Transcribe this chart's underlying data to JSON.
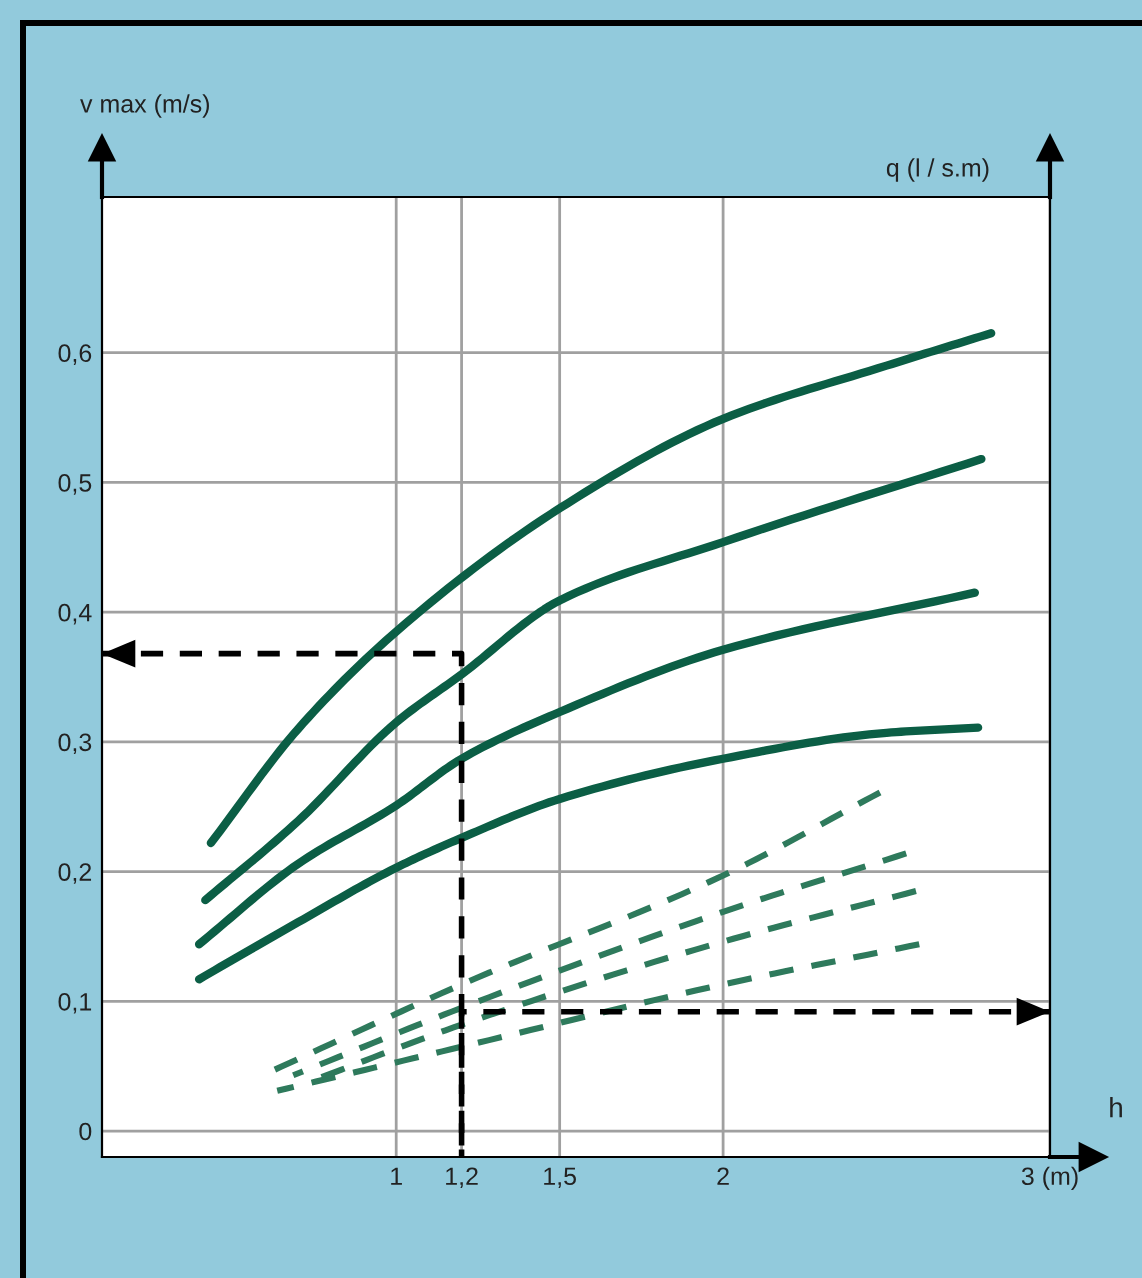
{
  "chart_data": {
    "type": "line",
    "xlabel": "h",
    "ylabel": "v max (m/s)",
    "y2label": "q (l / s.m)",
    "xlim": [
      0.1,
      3
    ],
    "ylim": [
      -0.02,
      0.72
    ],
    "xticks": [
      1,
      {
        "value": 1.2,
        "label": "1,2"
      },
      {
        "value": 1.5,
        "label": "1,5"
      },
      2,
      {
        "value": 3,
        "label": "3 (m)"
      }
    ],
    "yticks": [
      0,
      {
        "value": 0.1,
        "label": "0,1"
      },
      {
        "value": 0.2,
        "label": "0,2"
      },
      {
        "value": 0.3,
        "label": "0,3"
      },
      {
        "value": 0.4,
        "label": "0,4"
      },
      {
        "value": 0.5,
        "label": "0,5"
      },
      {
        "value": 0.6,
        "label": "0,6"
      }
    ],
    "grid": true,
    "series": [
      {
        "color": "#0b5e45",
        "line_style": "solid",
        "x": [
          0.433,
          0.7,
          1,
          1.5,
          2,
          2.5,
          2.82
        ],
        "values": [
          0.222,
          0.31,
          0.385,
          0.48,
          0.549,
          0.59,
          0.615
        ]
      },
      {
        "color": "#0b5e45",
        "line_style": "solid",
        "x": [
          0.416,
          0.7,
          1,
          1.2,
          1.5,
          2,
          2.79
        ],
        "values": [
          0.178,
          0.239,
          0.315,
          0.352,
          0.409,
          0.454,
          0.518
        ]
      },
      {
        "color": "#0b5e45",
        "line_style": "solid",
        "x": [
          0.397,
          0.7,
          1,
          1.2,
          1.5,
          2,
          2.77
        ],
        "values": [
          0.144,
          0.206,
          0.251,
          0.287,
          0.323,
          0.371,
          0.415
        ]
      },
      {
        "color": "#0b5e45",
        "line_style": "solid",
        "x": [
          0.397,
          0.7,
          1,
          1.2,
          1.5,
          2,
          2.5,
          2.78
        ],
        "values": [
          0.117,
          0.161,
          0.203,
          0.226,
          0.256,
          0.287,
          0.307,
          0.311
        ]
      },
      {
        "color": "#2e7a5c",
        "line_style": "dashed",
        "x": [
          0.617,
          1.2,
          2,
          2.48
        ],
        "values": [
          0.046,
          0.113,
          0.197,
          0.261
        ]
      },
      {
        "color": "#2e7a5c",
        "line_style": "dashed",
        "x": [
          0.685,
          1.2,
          2,
          2.56
        ],
        "values": [
          0.043,
          0.095,
          0.169,
          0.214
        ]
      },
      {
        "color": "#2e7a5c",
        "line_style": "dashed",
        "x": [
          0.735,
          1.2,
          2,
          2.59
        ],
        "values": [
          0.038,
          0.082,
          0.146,
          0.185
        ]
      },
      {
        "color": "#2e7a5c",
        "line_style": "dashed",
        "x": [
          0.636,
          1.2,
          2,
          2.6
        ],
        "values": [
          0.031,
          0.065,
          0.113,
          0.144
        ]
      },
      {
        "color": "#000000",
        "line_style": "dashed",
        "x": [
          1.2,
          1.2,
          0.1
        ],
        "values": [
          -0.02,
          0.368,
          0.368
        ]
      },
      {
        "color": "#000000",
        "line_style": "dashed",
        "x": [
          1.2,
          1.2,
          3
        ],
        "values": [
          -0.02,
          0.092,
          0.092
        ]
      }
    ]
  }
}
